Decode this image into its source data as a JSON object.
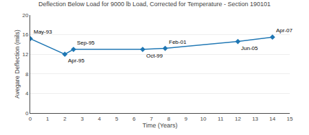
{
  "chart_data": {
    "type": "line",
    "title": "Deflection Below Load for 9000 lb Load, Corrected for Temperature - Section 190101",
    "xlabel": "Time (Years)",
    "ylabel": "Avegare Deflection (mils)",
    "x": [
      0,
      2.0,
      2.5,
      6.5,
      7.8,
      12.0,
      14.0
    ],
    "values": [
      15.2,
      12.0,
      13.0,
      13.0,
      13.2,
      14.6,
      15.5
    ],
    "annotations": [
      "May-93",
      "Apr-95",
      "Sep-95",
      "Oct-99",
      "Feb-01",
      "Jun-05",
      "Apr-07"
    ],
    "xlim": [
      0,
      15
    ],
    "ylim": [
      0,
      20
    ],
    "xticks": [
      0,
      1,
      2,
      3,
      4,
      5,
      6,
      7,
      8,
      9,
      10,
      11,
      12,
      13,
      14,
      15
    ],
    "yticks": [
      0,
      4,
      8,
      12,
      16,
      20
    ],
    "grid": true,
    "marker": "diamond"
  }
}
